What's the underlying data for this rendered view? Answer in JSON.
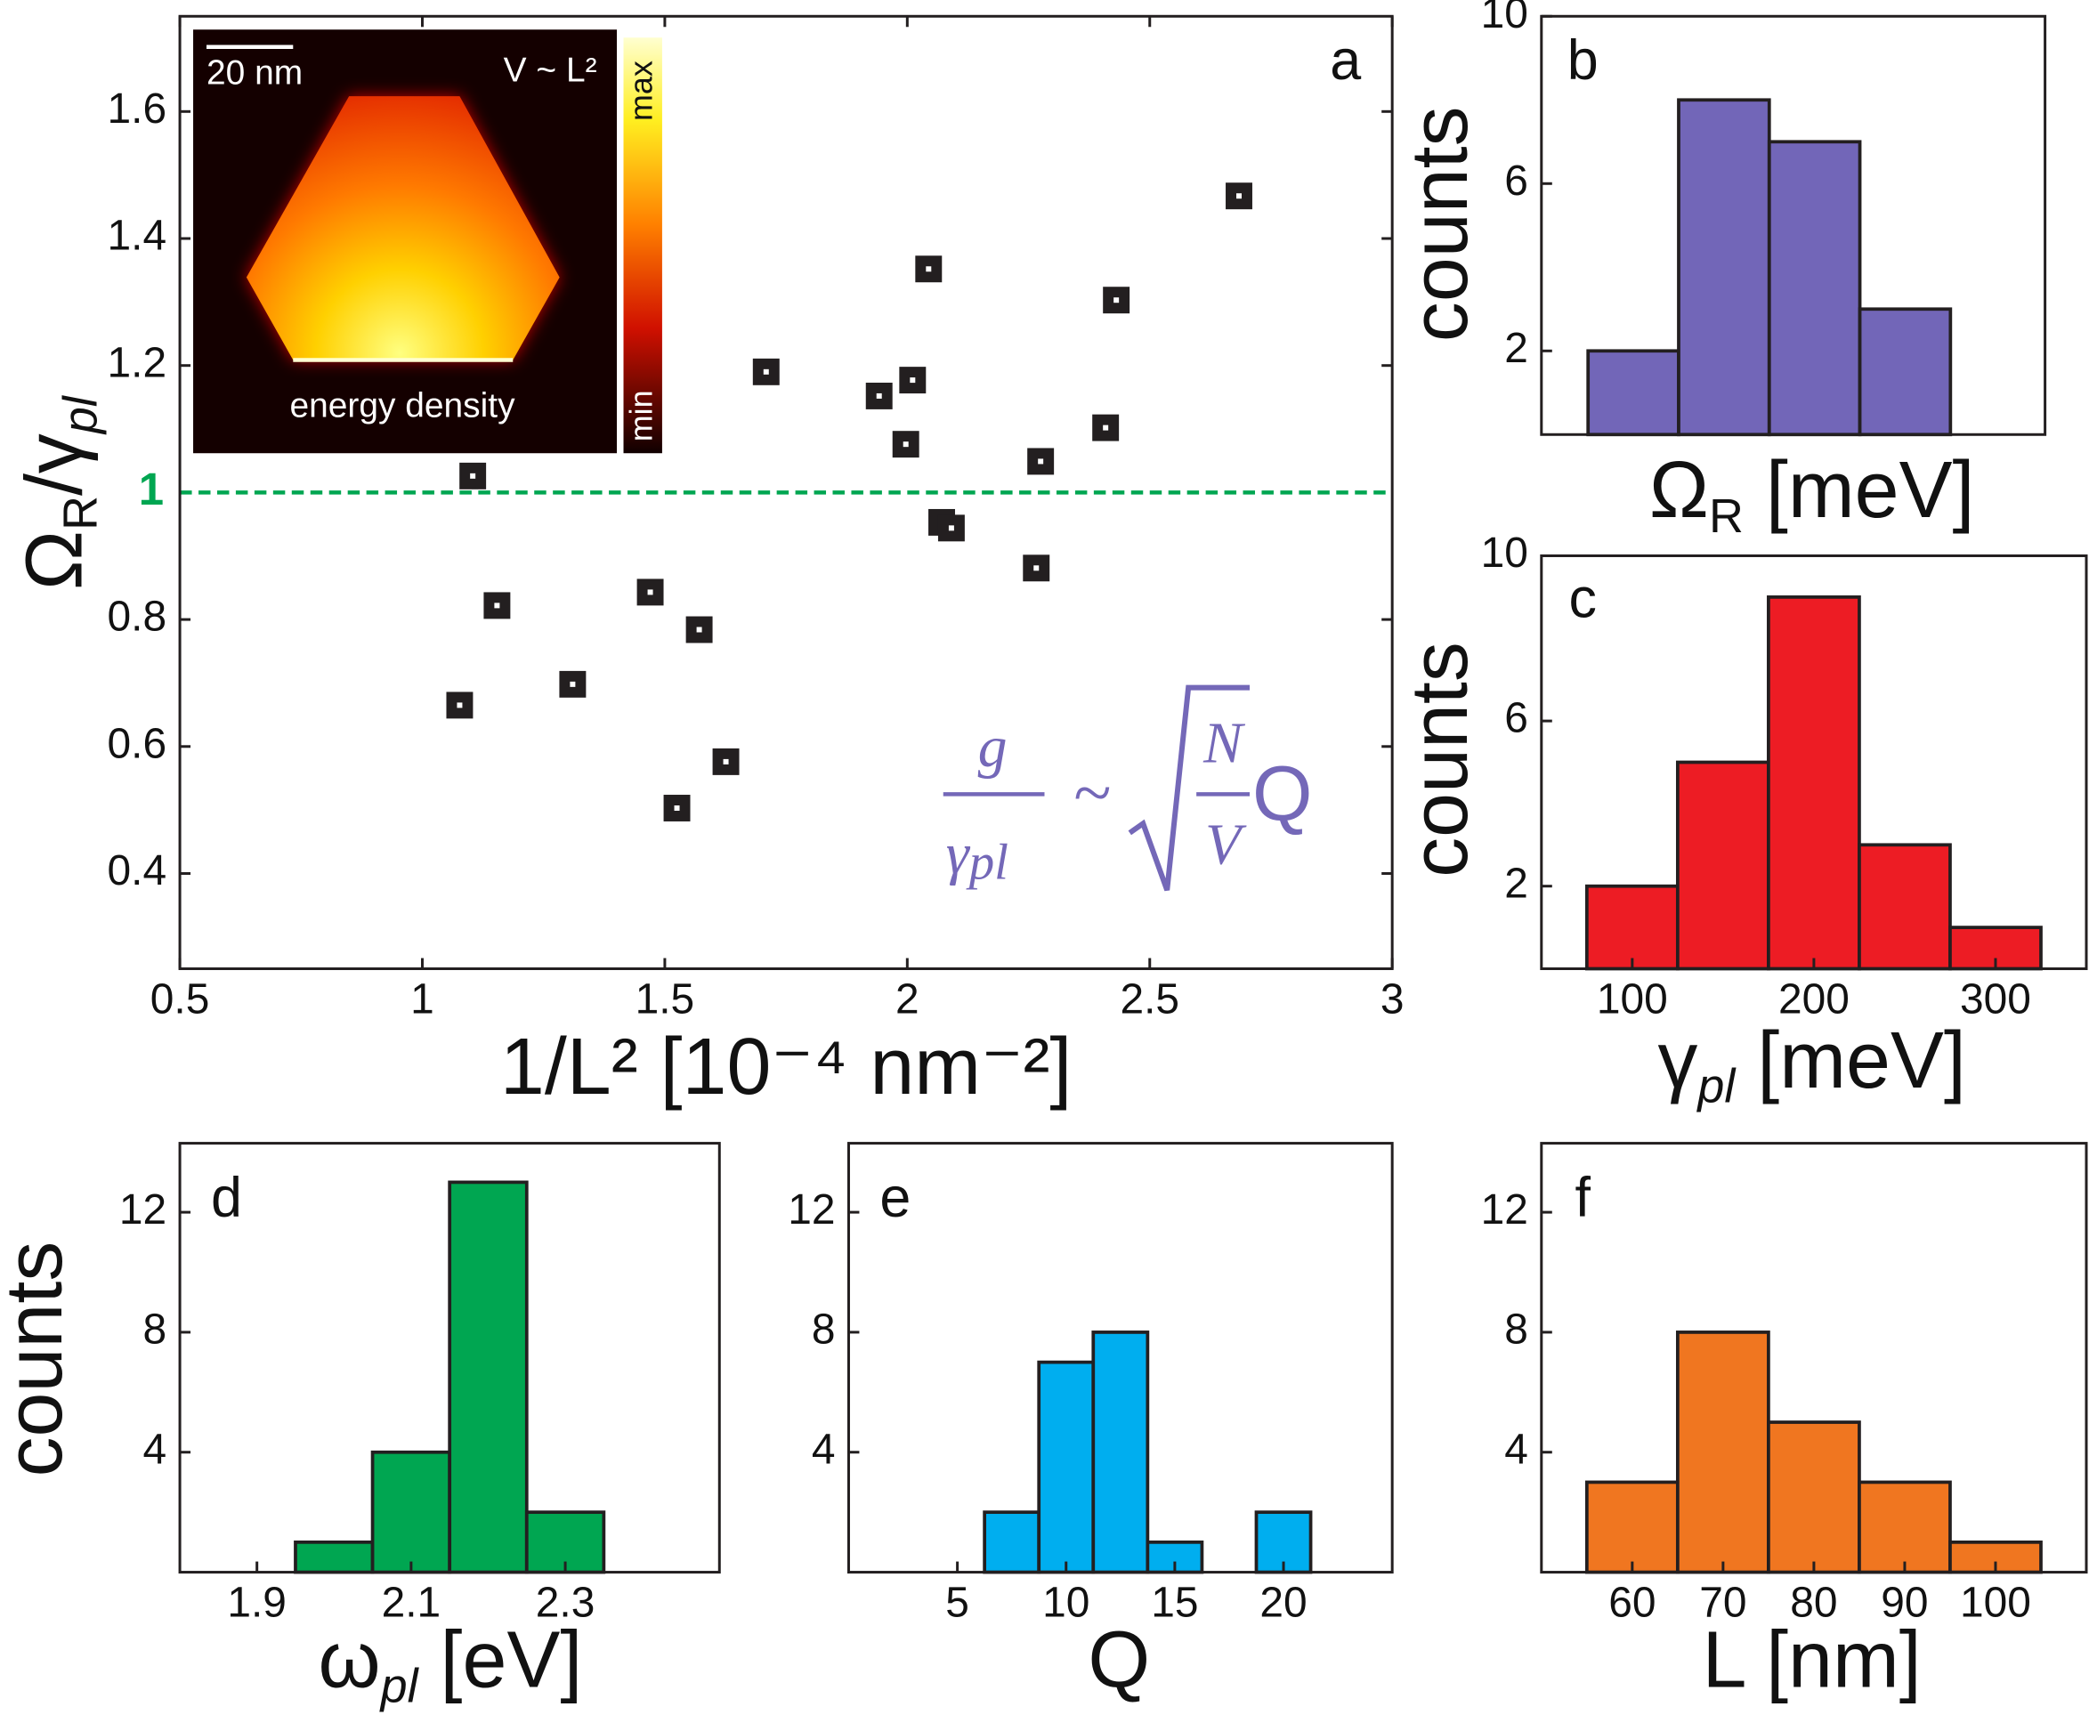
{
  "chart_data": [
    {
      "type": "scatter",
      "panel": "a",
      "x": [
        2.684,
        2.044,
        2.431,
        1.709,
        1.942,
        2.011,
        1.997,
        2.409,
        2.275,
        1.104,
        2.071,
        2.091,
        2.266,
        1.47,
        1.154,
        1.571,
        1.31,
        1.077,
        1.626,
        1.525
      ],
      "y": [
        1.467,
        1.352,
        1.303,
        1.19,
        1.152,
        1.177,
        1.076,
        1.102,
        1.049,
        1.026,
        0.953,
        0.944,
        0.881,
        0.843,
        0.822,
        0.784,
        0.698,
        0.665,
        0.576,
        0.503
      ],
      "marker_color": "#231f20",
      "xlim": [
        0.5,
        3
      ],
      "ylim": [
        0.25,
        1.75
      ],
      "xticks": [
        0.5,
        1,
        1.5,
        2,
        2.5,
        3
      ],
      "yticks": [
        0.4,
        0.6,
        0.8,
        1.2,
        1.4,
        1.6
      ],
      "xlabel": [
        {
          "text": "1/L² [10⁻⁴ nm⁻²]"
        }
      ],
      "ylabel": [
        {
          "text": "Ω"
        },
        {
          "text": "R",
          "sub": true
        },
        {
          "text": "/γ"
        },
        {
          "text": "pl",
          "sub": true,
          "italic": true
        }
      ],
      "reference_line": {
        "value": 1,
        "label": "1",
        "color": "#00a651"
      },
      "inset": {
        "scale_bar": "20 nm",
        "scaling": "V ~ L²",
        "caption": "energy density",
        "colorbar_max": "max",
        "colorbar_min": "min"
      },
      "formula": {
        "numerator": "g",
        "denominator": "γ",
        "denominator_sub": "pl",
        "relation": "~",
        "root_numerator": "N",
        "root_denominator": "V",
        "factor": "Q",
        "color": "#7468b8"
      }
    },
    {
      "type": "bar",
      "panel": "b",
      "categories": [
        null,
        null,
        null,
        null
      ],
      "values": [
        2,
        8,
        7,
        3
      ],
      "color": "#7266b8",
      "ylim": [
        0,
        10
      ],
      "yticks": [
        2,
        6,
        10
      ],
      "xlabel": [
        {
          "text": "Ω"
        },
        {
          "text": "R",
          "sub": true
        },
        {
          "text": " [meV]"
        }
      ],
      "ylabel": [
        {
          "text": "counts"
        }
      ]
    },
    {
      "type": "histogram",
      "panel": "c",
      "bins": [
        75,
        125,
        175,
        225,
        275,
        325
      ],
      "counts": [
        2,
        5,
        9,
        3,
        1
      ],
      "color": "#ed1c24",
      "xlim": [
        50,
        350
      ],
      "ylim": [
        0,
        10
      ],
      "xticks": [
        100,
        200,
        300
      ],
      "yticks": [
        2,
        6,
        10
      ],
      "xlabel": [
        {
          "text": "γ"
        },
        {
          "text": "pl",
          "sub": true,
          "italic": true
        },
        {
          "text": " [meV]"
        }
      ],
      "ylabel": [
        {
          "text": "counts"
        }
      ]
    },
    {
      "type": "histogram",
      "panel": "d",
      "bins": [
        1.95,
        2.05,
        2.15,
        2.25,
        2.35
      ],
      "counts": [
        1,
        4,
        13,
        2
      ],
      "color": "#00a651",
      "xlim": [
        1.8,
        2.5
      ],
      "ylim": [
        0,
        14.3
      ],
      "xticks": [
        1.9,
        2.1,
        2.3
      ],
      "yticks": [
        4,
        8,
        12
      ],
      "xlabel": [
        {
          "text": "ω"
        },
        {
          "text": "pl",
          "sub": true,
          "italic": true
        },
        {
          "text": " [eV]"
        }
      ],
      "ylabel": [
        {
          "text": "counts"
        }
      ]
    },
    {
      "type": "histogram",
      "panel": "e",
      "bins": [
        6.25,
        8.75,
        11.25,
        13.75,
        16.25,
        18.75,
        21.25
      ],
      "counts": [
        2,
        7,
        8,
        1,
        0,
        2
      ],
      "color": "#00aeef",
      "xlim": [
        0,
        25
      ],
      "ylim": [
        0,
        14.3
      ],
      "xticks": [
        5,
        10,
        15,
        20
      ],
      "yticks": [
        4,
        8,
        12
      ],
      "xlabel": [
        {
          "text": "Q"
        }
      ]
    },
    {
      "type": "histogram",
      "panel": "f",
      "bins": [
        55,
        65,
        75,
        85,
        95,
        105
      ],
      "counts": [
        3,
        8,
        5,
        3,
        1
      ],
      "color": "#f07620",
      "xlim": [
        50,
        110
      ],
      "ylim": [
        0,
        14.3
      ],
      "xticks": [
        60,
        70,
        80,
        90,
        100
      ],
      "yticks": [
        4,
        8,
        12
      ],
      "xlabel": [
        {
          "text": "L [nm]"
        }
      ]
    }
  ]
}
